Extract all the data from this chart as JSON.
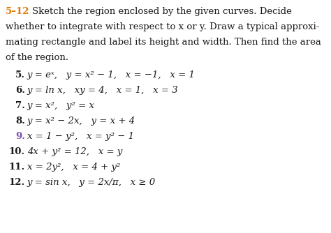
{
  "background_color": "#ffffff",
  "title_number_color": "#e07b00",
  "problem9_color": "#7a4faa",
  "body_color": "#1a1a1a",
  "fontsize": 9.5,
  "lh": 26,
  "header_lines": [
    [
      "5–12",
      "orange",
      " Sketch the region enclosed by the given curves. Decide"
    ],
    [
      "",
      "",
      "whether to integrate with respect to x or y. Draw a typical approxi-"
    ],
    [
      "",
      "",
      "mating rectangle and label its height and width. Then find the area"
    ],
    [
      "",
      "",
      "of the region."
    ]
  ],
  "problems": [
    {
      "num": "5.",
      "num_color": "#1a1a1a",
      "text": "y = eˣ,   y = x² − 1,   x = −1,   x = 1"
    },
    {
      "num": "6.",
      "num_color": "#1a1a1a",
      "text": "y = ln x,   xy = 4,   x = 1,   x = 3"
    },
    {
      "num": "7.",
      "num_color": "#1a1a1a",
      "text": "y = x²,   y² = x"
    },
    {
      "num": "8.",
      "num_color": "#1a1a1a",
      "text": "y = x² − 2x,   y = x + 4"
    },
    {
      "num": "9.",
      "num_color": "#7a4faa",
      "text": "x = 1 − y²,   x = y² − 1"
    },
    {
      "num": "10.",
      "num_color": "#1a1a1a",
      "text": "4x + y² = 12,   x = y"
    },
    {
      "num": "11.",
      "num_color": "#1a1a1a",
      "text": "x = 2y²,   x = 4 + y²"
    },
    {
      "num": "12.",
      "num_color": "#1a1a1a",
      "text": "y = sin x,   y = 2x/π,   x ≥ 0"
    }
  ]
}
